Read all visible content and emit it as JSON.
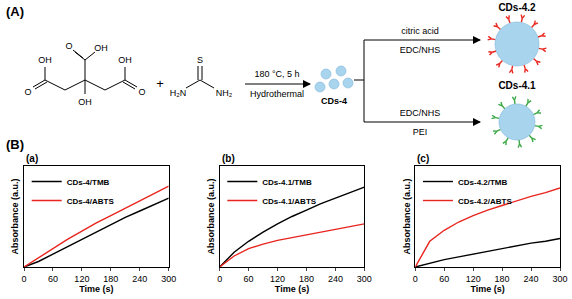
{
  "panel_labels": [
    "(A)",
    "(B)"
  ],
  "scheme": {
    "reactant_1": {
      "labels": [
        "O",
        "OH",
        "OH",
        "O",
        "OH",
        "OH",
        "O"
      ]
    },
    "plus": "+",
    "reactant_2": {
      "labels": [
        "S",
        "H₂N",
        "NH₂"
      ]
    },
    "conditions": {
      "above": "180 °C, 5 h",
      "below": "Hydrothermal"
    },
    "product": "CDs-4",
    "branch_top": {
      "above": "citric acid",
      "below": "EDC/NHS",
      "product": "CDs-4.2"
    },
    "branch_bottom": {
      "above": "EDC/NHS",
      "below": "PEI",
      "product": "CDs-4.1"
    }
  },
  "chart_data": [
    {
      "type": "line",
      "label": "(a)",
      "x_title": "Time (s)",
      "y_title": "Absorbance (a.u.)",
      "x": [
        0,
        30,
        60,
        90,
        120,
        150,
        180,
        210,
        240,
        270,
        300
      ],
      "series": [
        {
          "name": "CDs-4/TMB",
          "color": "#000000",
          "values": [
            0,
            0.06,
            0.14,
            0.22,
            0.3,
            0.38,
            0.46,
            0.54,
            0.61,
            0.68,
            0.75
          ]
        },
        {
          "name": "CDs-4/ABTS",
          "color": "#e8251e",
          "values": [
            0,
            0.1,
            0.2,
            0.3,
            0.39,
            0.48,
            0.56,
            0.64,
            0.72,
            0.8,
            0.88
          ]
        }
      ],
      "xlim": [
        0,
        300
      ],
      "xticks": [
        0,
        60,
        120,
        180,
        240,
        300
      ],
      "ylim": [
        0,
        1.1
      ],
      "tick_labels": "x",
      "grid": false,
      "legend": "top-left"
    },
    {
      "type": "line",
      "label": "(b)",
      "x_title": "Time (s)",
      "y_title": "Absorbance (a.u.)",
      "x": [
        0,
        30,
        60,
        90,
        120,
        150,
        180,
        210,
        240,
        270,
        300
      ],
      "series": [
        {
          "name": "CDs-4.1/TMB",
          "color": "#000000",
          "values": [
            0,
            0.16,
            0.28,
            0.38,
            0.47,
            0.55,
            0.62,
            0.69,
            0.75,
            0.81,
            0.87
          ]
        },
        {
          "name": "CDs-4.1/ABTS",
          "color": "#e8251e",
          "values": [
            0,
            0.12,
            0.2,
            0.25,
            0.29,
            0.32,
            0.35,
            0.38,
            0.41,
            0.44,
            0.47
          ]
        }
      ],
      "xlim": [
        0,
        300
      ],
      "xticks": [
        0,
        60,
        120,
        180,
        240,
        300
      ],
      "ylim": [
        0,
        1.1
      ],
      "tick_labels": "x",
      "grid": false,
      "legend": "top-left"
    },
    {
      "type": "line",
      "label": "(c)",
      "x_title": "Time (s)",
      "y_title": "Absorbance (a.u.)",
      "x": [
        0,
        30,
        60,
        90,
        120,
        150,
        180,
        210,
        240,
        270,
        300
      ],
      "series": [
        {
          "name": "CDs-4.2/TMB",
          "color": "#000000",
          "values": [
            0,
            0.04,
            0.08,
            0.11,
            0.14,
            0.17,
            0.2,
            0.23,
            0.26,
            0.28,
            0.31
          ]
        },
        {
          "name": "CDs-4.2/ABTS",
          "color": "#e8251e",
          "values": [
            0,
            0.28,
            0.4,
            0.49,
            0.56,
            0.62,
            0.67,
            0.72,
            0.77,
            0.81,
            0.86
          ]
        }
      ],
      "xlim": [
        0,
        300
      ],
      "xticks": [
        0,
        60,
        120,
        180,
        240,
        300
      ],
      "ylim": [
        0,
        1.1
      ],
      "tick_labels": "x",
      "grid": false,
      "legend": "top-left"
    }
  ]
}
